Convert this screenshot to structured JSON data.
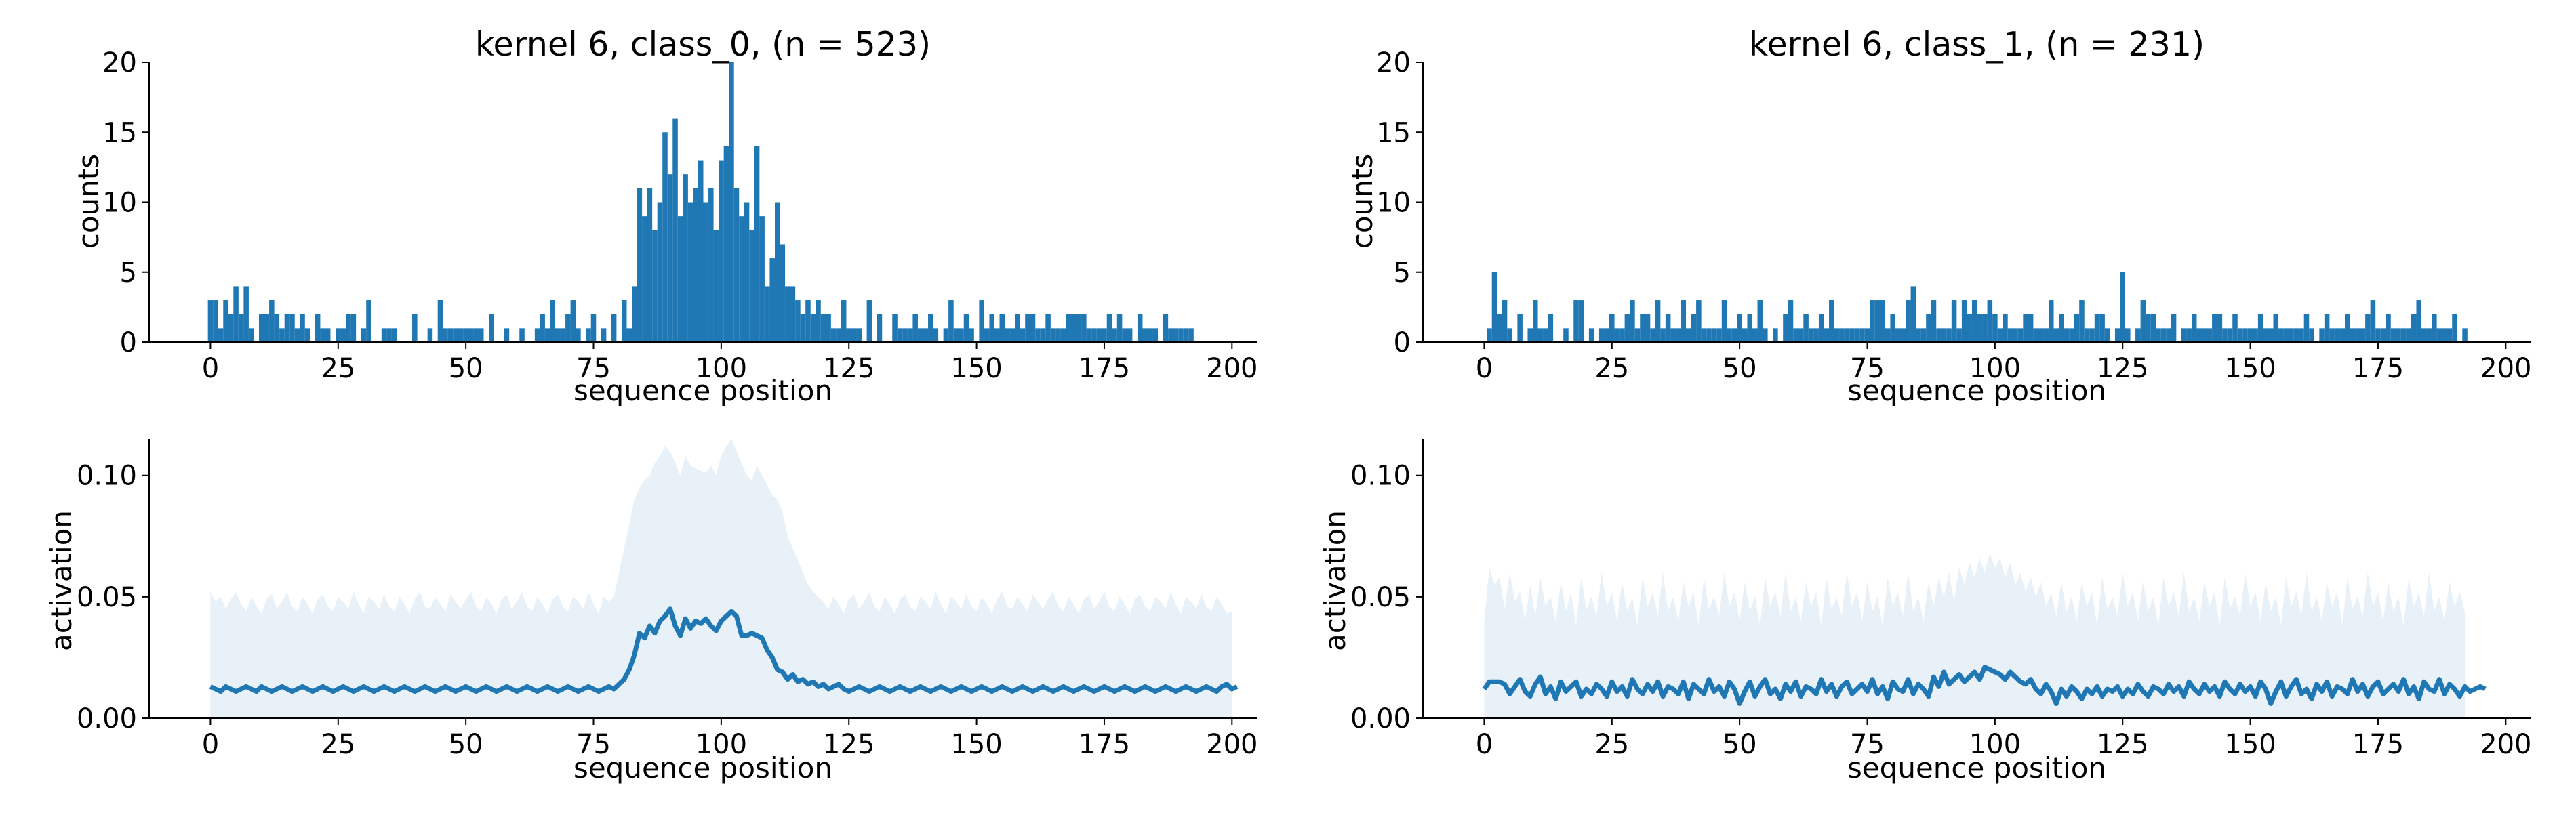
{
  "colors": {
    "bar": "#1f77b4",
    "line": "#1f77b4",
    "band": "#e8f0f8",
    "axis": "#000000"
  },
  "chart_data": [
    {
      "type": "bar",
      "title": "kernel 6, class_0, (n = 523)",
      "xlabel": "sequence position",
      "ylabel": "counts",
      "xlim": [
        -12,
        205
      ],
      "ylim": [
        0,
        20
      ],
      "xticks": [
        "0",
        "25",
        "50",
        "75",
        "100",
        "125",
        "150",
        "175",
        "200"
      ],
      "yticks": [
        "0",
        "5",
        "10",
        "15",
        "20"
      ],
      "x_start": 0,
      "values": [
        3,
        3,
        1,
        3,
        2,
        4,
        2,
        4,
        1,
        0,
        2,
        2,
        3,
        2,
        1,
        2,
        2,
        1,
        2,
        1,
        0,
        2,
        1,
        1,
        0,
        1,
        1,
        2,
        2,
        0,
        1,
        3,
        0,
        0,
        1,
        1,
        1,
        0,
        0,
        0,
        2,
        0,
        0,
        1,
        0,
        3,
        1,
        1,
        1,
        1,
        1,
        1,
        1,
        1,
        0,
        2,
        0,
        0,
        1,
        0,
        0,
        1,
        0,
        0,
        1,
        2,
        1,
        3,
        1,
        1,
        2,
        3,
        1,
        0,
        1,
        2,
        0,
        1,
        0,
        2,
        0,
        3,
        1,
        4,
        11,
        9,
        11,
        8,
        10,
        15,
        12,
        16,
        9,
        12,
        10,
        11,
        13,
        10,
        11,
        8,
        13,
        14,
        20,
        11,
        9,
        10,
        8,
        14,
        9,
        4,
        6,
        10,
        7,
        4,
        4,
        3,
        2,
        3,
        2,
        3,
        2,
        2,
        1,
        1,
        3,
        1,
        1,
        1,
        0,
        3,
        0,
        2,
        0,
        0,
        2,
        1,
        1,
        1,
        2,
        1,
        1,
        2,
        1,
        0,
        1,
        3,
        1,
        1,
        2,
        1,
        0,
        3,
        1,
        2,
        1,
        2,
        1,
        1,
        2,
        1,
        2,
        2,
        1,
        1,
        2,
        1,
        1,
        1,
        2,
        2,
        2,
        2,
        1,
        1,
        1,
        1,
        2,
        1,
        2,
        1,
        1,
        0,
        2,
        1,
        1,
        1,
        0,
        2,
        1,
        1,
        1,
        1,
        1
      ]
    },
    {
      "type": "bar",
      "title": "kernel 6, class_1, (n = 231)",
      "xlabel": "sequence position",
      "ylabel": "counts",
      "xlim": [
        -12,
        205
      ],
      "ylim": [
        0,
        20
      ],
      "xticks": [
        "0",
        "25",
        "50",
        "75",
        "100",
        "125",
        "150",
        "175",
        "200"
      ],
      "yticks": [
        "0",
        "5",
        "10",
        "15",
        "20"
      ],
      "x_start": 0,
      "values": [
        0,
        1,
        5,
        2,
        3,
        1,
        0,
        2,
        0,
        1,
        3,
        1,
        1,
        2,
        0,
        0,
        1,
        0,
        3,
        3,
        0,
        1,
        0,
        1,
        1,
        2,
        1,
        1,
        2,
        3,
        1,
        2,
        2,
        1,
        3,
        1,
        2,
        1,
        1,
        3,
        1,
        2,
        3,
        1,
        1,
        1,
        1,
        3,
        1,
        1,
        2,
        1,
        2,
        1,
        3,
        1,
        0,
        1,
        0,
        2,
        3,
        1,
        1,
        2,
        1,
        1,
        2,
        1,
        3,
        1,
        1,
        1,
        1,
        1,
        1,
        1,
        3,
        3,
        3,
        1,
        2,
        1,
        1,
        3,
        4,
        1,
        1,
        2,
        3,
        1,
        1,
        1,
        3,
        1,
        3,
        2,
        3,
        2,
        2,
        3,
        2,
        1,
        2,
        1,
        1,
        1,
        2,
        2,
        1,
        1,
        1,
        3,
        1,
        2,
        1,
        1,
        2,
        3,
        1,
        1,
        2,
        2,
        1,
        0,
        1,
        5,
        1,
        0,
        1,
        3,
        2,
        2,
        1,
        1,
        1,
        2,
        0,
        1,
        1,
        2,
        1,
        1,
        1,
        2,
        2,
        1,
        1,
        2,
        1,
        1,
        1,
        1,
        2,
        1,
        1,
        2,
        1,
        1,
        1,
        1,
        1,
        2,
        1,
        0,
        1,
        2,
        1,
        1,
        1,
        2,
        1,
        1,
        1,
        2,
        3,
        1,
        1,
        2,
        1,
        1,
        1,
        1,
        2,
        3,
        1,
        1,
        2,
        1,
        1,
        1,
        2,
        0,
        1
      ]
    },
    {
      "type": "line",
      "title": "",
      "xlabel": "sequence position",
      "ylabel": "activation",
      "xlim": [
        -12,
        205
      ],
      "ylim": [
        0,
        0.115
      ],
      "xticks": [
        "0",
        "25",
        "50",
        "75",
        "100",
        "125",
        "150",
        "175",
        "200"
      ],
      "yticks": [
        "0.00",
        "0.05",
        "0.10"
      ],
      "x_start": 0,
      "series": [
        {
          "values": [
            0.013,
            0.012,
            0.011,
            0.013,
            0.012,
            0.011,
            0.012,
            0.013,
            0.012,
            0.011,
            0.013,
            0.012,
            0.011,
            0.012,
            0.013,
            0.012,
            0.011,
            0.012,
            0.013,
            0.012,
            0.011,
            0.012,
            0.013,
            0.012,
            0.011,
            0.012,
            0.013,
            0.012,
            0.011,
            0.012,
            0.013,
            0.012,
            0.011,
            0.012,
            0.013,
            0.012,
            0.011,
            0.012,
            0.013,
            0.012,
            0.011,
            0.012,
            0.013,
            0.012,
            0.011,
            0.012,
            0.013,
            0.012,
            0.011,
            0.012,
            0.013,
            0.012,
            0.011,
            0.012,
            0.013,
            0.012,
            0.011,
            0.012,
            0.013,
            0.012,
            0.011,
            0.012,
            0.013,
            0.012,
            0.011,
            0.012,
            0.013,
            0.012,
            0.011,
            0.012,
            0.013,
            0.012,
            0.011,
            0.012,
            0.013,
            0.012,
            0.011,
            0.012,
            0.013,
            0.012,
            0.014,
            0.016,
            0.02,
            0.026,
            0.035,
            0.033,
            0.038,
            0.035,
            0.04,
            0.042,
            0.045,
            0.038,
            0.034,
            0.041,
            0.037,
            0.04,
            0.039,
            0.041,
            0.038,
            0.036,
            0.04,
            0.042,
            0.044,
            0.042,
            0.034,
            0.034,
            0.035,
            0.034,
            0.033,
            0.028,
            0.025,
            0.02,
            0.019,
            0.016,
            0.018,
            0.015,
            0.016,
            0.014,
            0.015,
            0.013,
            0.014,
            0.012,
            0.013,
            0.014,
            0.012,
            0.011,
            0.012,
            0.013,
            0.012,
            0.011,
            0.012,
            0.013,
            0.012,
            0.011,
            0.012,
            0.013,
            0.012,
            0.011,
            0.012,
            0.013,
            0.012,
            0.011,
            0.012,
            0.013,
            0.012,
            0.011,
            0.012,
            0.013,
            0.012,
            0.011,
            0.012,
            0.013,
            0.012,
            0.011,
            0.012,
            0.013,
            0.012,
            0.011,
            0.012,
            0.013,
            0.012,
            0.011,
            0.012,
            0.013,
            0.012,
            0.011,
            0.012,
            0.013,
            0.012,
            0.011,
            0.012,
            0.013,
            0.012,
            0.011,
            0.012,
            0.013,
            0.012,
            0.011,
            0.012,
            0.013,
            0.012,
            0.011,
            0.012,
            0.013,
            0.012,
            0.011,
            0.012,
            0.013,
            0.012,
            0.011,
            0.012,
            0.013,
            0.012,
            0.011,
            0.012,
            0.013,
            0.012,
            0.011,
            0.013,
            0.014,
            0.012,
            0.013
          ]
        }
      ],
      "band_upper": [
        0.052,
        0.048,
        0.05,
        0.045,
        0.049,
        0.052,
        0.047,
        0.044,
        0.05,
        0.046,
        0.043,
        0.049,
        0.051,
        0.045,
        0.048,
        0.052,
        0.046,
        0.044,
        0.05,
        0.047,
        0.043,
        0.049,
        0.051,
        0.046,
        0.044,
        0.05,
        0.048,
        0.045,
        0.052,
        0.047,
        0.043,
        0.05,
        0.048,
        0.045,
        0.051,
        0.046,
        0.044,
        0.05,
        0.047,
        0.043,
        0.049,
        0.052,
        0.046,
        0.045,
        0.05,
        0.047,
        0.044,
        0.051,
        0.048,
        0.045,
        0.049,
        0.052,
        0.046,
        0.044,
        0.05,
        0.047,
        0.043,
        0.049,
        0.051,
        0.045,
        0.048,
        0.052,
        0.046,
        0.044,
        0.05,
        0.047,
        0.043,
        0.049,
        0.051,
        0.046,
        0.044,
        0.05,
        0.048,
        0.045,
        0.052,
        0.047,
        0.043,
        0.05,
        0.048,
        0.05,
        0.06,
        0.07,
        0.08,
        0.09,
        0.095,
        0.098,
        0.1,
        0.105,
        0.108,
        0.112,
        0.11,
        0.105,
        0.1,
        0.108,
        0.104,
        0.103,
        0.102,
        0.101,
        0.104,
        0.1,
        0.108,
        0.112,
        0.115,
        0.11,
        0.105,
        0.1,
        0.098,
        0.104,
        0.1,
        0.096,
        0.092,
        0.09,
        0.085,
        0.075,
        0.07,
        0.065,
        0.06,
        0.055,
        0.052,
        0.05,
        0.048,
        0.045,
        0.05,
        0.047,
        0.043,
        0.049,
        0.051,
        0.045,
        0.048,
        0.052,
        0.046,
        0.044,
        0.05,
        0.047,
        0.043,
        0.049,
        0.051,
        0.046,
        0.044,
        0.05,
        0.048,
        0.045,
        0.052,
        0.047,
        0.043,
        0.05,
        0.048,
        0.045,
        0.051,
        0.046,
        0.044,
        0.05,
        0.047,
        0.043,
        0.049,
        0.052,
        0.046,
        0.045,
        0.05,
        0.047,
        0.044,
        0.051,
        0.048,
        0.045,
        0.049,
        0.052,
        0.046,
        0.044,
        0.05,
        0.047,
        0.043,
        0.049,
        0.051,
        0.045,
        0.048,
        0.052,
        0.046,
        0.044,
        0.05,
        0.047,
        0.043,
        0.049,
        0.051,
        0.046,
        0.044,
        0.05,
        0.048,
        0.045,
        0.052,
        0.047,
        0.043,
        0.05,
        0.048,
        0.045,
        0.051,
        0.046,
        0.044,
        0.05,
        0.047,
        0.043,
        0.044
      ]
    },
    {
      "type": "line",
      "title": "",
      "xlabel": "sequence position",
      "ylabel": "activation",
      "xlim": [
        -12,
        205
      ],
      "ylim": [
        0,
        0.115
      ],
      "xticks": [
        "0",
        "25",
        "50",
        "75",
        "100",
        "125",
        "150",
        "175",
        "200"
      ],
      "yticks": [
        "0.00",
        "0.05",
        "0.10"
      ],
      "x_start": 0,
      "series": [
        {
          "values": [
            0.012,
            0.015,
            0.015,
            0.015,
            0.014,
            0.01,
            0.013,
            0.016,
            0.011,
            0.009,
            0.014,
            0.017,
            0.01,
            0.013,
            0.008,
            0.015,
            0.011,
            0.013,
            0.015,
            0.009,
            0.012,
            0.01,
            0.014,
            0.012,
            0.009,
            0.015,
            0.011,
            0.013,
            0.009,
            0.016,
            0.012,
            0.01,
            0.014,
            0.011,
            0.015,
            0.009,
            0.013,
            0.012,
            0.01,
            0.015,
            0.008,
            0.014,
            0.012,
            0.01,
            0.016,
            0.011,
            0.013,
            0.009,
            0.015,
            0.012,
            0.006,
            0.011,
            0.015,
            0.009,
            0.013,
            0.016,
            0.01,
            0.012,
            0.008,
            0.014,
            0.011,
            0.015,
            0.009,
            0.013,
            0.012,
            0.01,
            0.016,
            0.011,
            0.014,
            0.009,
            0.013,
            0.015,
            0.01,
            0.012,
            0.014,
            0.011,
            0.016,
            0.01,
            0.013,
            0.008,
            0.015,
            0.012,
            0.011,
            0.016,
            0.01,
            0.014,
            0.012,
            0.009,
            0.017,
            0.013,
            0.019,
            0.014,
            0.016,
            0.018,
            0.015,
            0.017,
            0.019,
            0.016,
            0.021,
            0.02,
            0.019,
            0.018,
            0.016,
            0.019,
            0.017,
            0.015,
            0.014,
            0.016,
            0.012,
            0.01,
            0.014,
            0.011,
            0.006,
            0.012,
            0.009,
            0.013,
            0.011,
            0.008,
            0.012,
            0.01,
            0.013,
            0.009,
            0.012,
            0.011,
            0.013,
            0.009,
            0.012,
            0.01,
            0.014,
            0.011,
            0.009,
            0.013,
            0.012,
            0.01,
            0.014,
            0.011,
            0.013,
            0.009,
            0.015,
            0.012,
            0.01,
            0.014,
            0.011,
            0.013,
            0.009,
            0.015,
            0.012,
            0.01,
            0.014,
            0.011,
            0.013,
            0.009,
            0.015,
            0.012,
            0.006,
            0.011,
            0.015,
            0.009,
            0.013,
            0.016,
            0.01,
            0.012,
            0.008,
            0.014,
            0.011,
            0.015,
            0.009,
            0.013,
            0.012,
            0.01,
            0.016,
            0.011,
            0.014,
            0.009,
            0.013,
            0.015,
            0.01,
            0.012,
            0.014,
            0.011,
            0.016,
            0.01,
            0.013,
            0.008,
            0.015,
            0.012,
            0.011,
            0.016,
            0.01,
            0.014,
            0.012,
            0.009,
            0.013,
            0.011,
            0.012,
            0.013,
            0.012
          ]
        }
      ],
      "band_upper": [
        0.04,
        0.062,
        0.055,
        0.058,
        0.045,
        0.06,
        0.048,
        0.052,
        0.04,
        0.055,
        0.042,
        0.058,
        0.046,
        0.05,
        0.04,
        0.056,
        0.044,
        0.052,
        0.038,
        0.058,
        0.045,
        0.05,
        0.042,
        0.06,
        0.046,
        0.052,
        0.04,
        0.056,
        0.044,
        0.05,
        0.038,
        0.058,
        0.046,
        0.052,
        0.042,
        0.06,
        0.044,
        0.05,
        0.04,
        0.056,
        0.046,
        0.052,
        0.038,
        0.058,
        0.045,
        0.05,
        0.042,
        0.06,
        0.046,
        0.052,
        0.04,
        0.056,
        0.044,
        0.05,
        0.038,
        0.058,
        0.046,
        0.052,
        0.042,
        0.06,
        0.044,
        0.05,
        0.04,
        0.056,
        0.046,
        0.052,
        0.038,
        0.058,
        0.045,
        0.05,
        0.042,
        0.06,
        0.046,
        0.052,
        0.04,
        0.056,
        0.044,
        0.05,
        0.038,
        0.058,
        0.046,
        0.052,
        0.042,
        0.06,
        0.044,
        0.05,
        0.04,
        0.056,
        0.046,
        0.058,
        0.05,
        0.06,
        0.048,
        0.062,
        0.055,
        0.064,
        0.058,
        0.066,
        0.06,
        0.068,
        0.062,
        0.066,
        0.058,
        0.064,
        0.055,
        0.06,
        0.052,
        0.058,
        0.05,
        0.056,
        0.046,
        0.052,
        0.042,
        0.056,
        0.044,
        0.05,
        0.04,
        0.056,
        0.046,
        0.052,
        0.038,
        0.058,
        0.045,
        0.05,
        0.042,
        0.06,
        0.046,
        0.052,
        0.04,
        0.056,
        0.044,
        0.05,
        0.038,
        0.058,
        0.046,
        0.052,
        0.042,
        0.06,
        0.044,
        0.05,
        0.04,
        0.056,
        0.046,
        0.052,
        0.038,
        0.058,
        0.045,
        0.05,
        0.042,
        0.06,
        0.046,
        0.052,
        0.04,
        0.056,
        0.044,
        0.05,
        0.038,
        0.058,
        0.046,
        0.052,
        0.042,
        0.06,
        0.044,
        0.05,
        0.04,
        0.056,
        0.046,
        0.052,
        0.038,
        0.058,
        0.045,
        0.05,
        0.042,
        0.06,
        0.046,
        0.052,
        0.04,
        0.056,
        0.044,
        0.05,
        0.038,
        0.058,
        0.046,
        0.052,
        0.042,
        0.06,
        0.044,
        0.05,
        0.04,
        0.056,
        0.046,
        0.052,
        0.044
      ]
    }
  ]
}
